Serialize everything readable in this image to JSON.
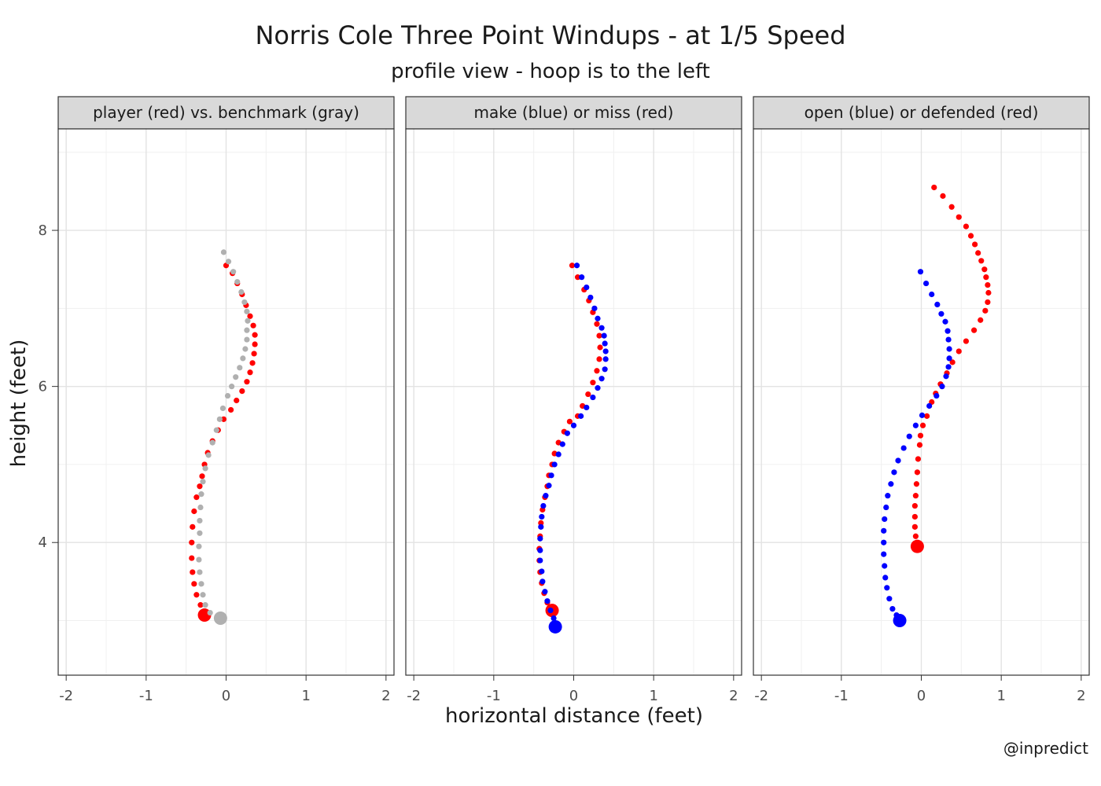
{
  "chart_data": {
    "type": "scatter",
    "title": "Norris Cole Three Point Windups - at 1/5 Speed",
    "subtitle": "profile view - hoop is to the left",
    "xlabel": "horizontal distance (feet)",
    "ylabel": "height (feet)",
    "xlim": [
      -2.1,
      2.1
    ],
    "ylim": [
      2.3,
      9.3
    ],
    "xticks": [
      -2,
      -1,
      0,
      1,
      2
    ],
    "xtick_labels": [
      "-2",
      "-1",
      "0",
      "1",
      "2"
    ],
    "yticks": [
      4,
      6,
      8
    ],
    "ytick_labels": [
      "4",
      "6",
      "8"
    ],
    "grid": true,
    "panels": [
      {
        "strip": "player (red) vs. benchmark (gray)",
        "series": [
          {
            "color": "#ff0000",
            "start": [
              -0.27,
              3.07
            ],
            "points": [
              [
                0.0,
                7.55
              ],
              [
                0.08,
                7.45
              ],
              [
                0.14,
                7.32
              ],
              [
                0.2,
                7.18
              ],
              [
                0.25,
                7.04
              ],
              [
                0.3,
                6.9
              ],
              [
                0.34,
                6.78
              ],
              [
                0.36,
                6.66
              ],
              [
                0.36,
                6.54
              ],
              [
                0.35,
                6.42
              ],
              [
                0.33,
                6.3
              ],
              [
                0.3,
                6.18
              ],
              [
                0.26,
                6.06
              ],
              [
                0.2,
                5.94
              ],
              [
                0.13,
                5.82
              ],
              [
                0.06,
                5.7
              ],
              [
                -0.03,
                5.58
              ],
              [
                -0.1,
                5.44
              ],
              [
                -0.17,
                5.3
              ],
              [
                -0.23,
                5.15
              ],
              [
                -0.27,
                5.0
              ],
              [
                -0.3,
                4.85
              ],
              [
                -0.33,
                4.72
              ],
              [
                -0.37,
                4.58
              ],
              [
                -0.4,
                4.4
              ],
              [
                -0.42,
                4.2
              ],
              [
                -0.43,
                4.0
              ],
              [
                -0.43,
                3.8
              ],
              [
                -0.42,
                3.62
              ],
              [
                -0.4,
                3.47
              ],
              [
                -0.37,
                3.33
              ],
              [
                -0.32,
                3.2
              ]
            ]
          },
          {
            "color": "#b0b0b0",
            "start": [
              -0.07,
              3.03
            ],
            "points": [
              [
                -0.03,
                7.72
              ],
              [
                0.03,
                7.6
              ],
              [
                0.09,
                7.47
              ],
              [
                0.14,
                7.34
              ],
              [
                0.19,
                7.21
              ],
              [
                0.23,
                7.08
              ],
              [
                0.26,
                6.96
              ],
              [
                0.27,
                6.84
              ],
              [
                0.26,
                6.72
              ],
              [
                0.26,
                6.6
              ],
              [
                0.24,
                6.48
              ],
              [
                0.21,
                6.36
              ],
              [
                0.17,
                6.24
              ],
              [
                0.12,
                6.12
              ],
              [
                0.07,
                6.0
              ],
              [
                0.02,
                5.88
              ],
              [
                -0.04,
                5.72
              ],
              [
                -0.08,
                5.58
              ],
              [
                -0.12,
                5.44
              ],
              [
                -0.17,
                5.28
              ],
              [
                -0.22,
                5.12
              ],
              [
                -0.26,
                4.95
              ],
              [
                -0.29,
                4.78
              ],
              [
                -0.31,
                4.62
              ],
              [
                -0.32,
                4.45
              ],
              [
                -0.33,
                4.28
              ],
              [
                -0.33,
                4.12
              ],
              [
                -0.34,
                3.95
              ],
              [
                -0.34,
                3.78
              ],
              [
                -0.33,
                3.62
              ],
              [
                -0.31,
                3.47
              ],
              [
                -0.29,
                3.33
              ],
              [
                -0.26,
                3.2
              ],
              [
                -0.2,
                3.1
              ]
            ]
          }
        ]
      },
      {
        "strip": "make (blue) or miss (red)",
        "series": [
          {
            "color": "#ff0000",
            "start": [
              -0.27,
              3.13
            ],
            "points": [
              [
                -0.02,
                7.55
              ],
              [
                0.05,
                7.4
              ],
              [
                0.13,
                7.24
              ],
              [
                0.19,
                7.1
              ],
              [
                0.24,
                6.95
              ],
              [
                0.29,
                6.8
              ],
              [
                0.32,
                6.65
              ],
              [
                0.33,
                6.5
              ],
              [
                0.32,
                6.35
              ],
              [
                0.29,
                6.2
              ],
              [
                0.24,
                6.05
              ],
              [
                0.18,
                5.9
              ],
              [
                0.11,
                5.75
              ],
              [
                0.05,
                5.62
              ],
              [
                -0.05,
                5.55
              ],
              [
                -0.12,
                5.42
              ],
              [
                -0.19,
                5.28
              ],
              [
                -0.24,
                5.14
              ],
              [
                -0.27,
                5.0
              ],
              [
                -0.31,
                4.86
              ],
              [
                -0.33,
                4.72
              ],
              [
                -0.36,
                4.58
              ],
              [
                -0.39,
                4.42
              ],
              [
                -0.41,
                4.25
              ],
              [
                -0.42,
                4.08
              ],
              [
                -0.43,
                3.92
              ],
              [
                -0.43,
                3.77
              ],
              [
                -0.42,
                3.62
              ],
              [
                -0.4,
                3.48
              ],
              [
                -0.37,
                3.35
              ],
              [
                -0.33,
                3.23
              ]
            ]
          },
          {
            "color": "#0000ff",
            "start": [
              -0.23,
              2.92
            ],
            "points": [
              [
                0.04,
                7.55
              ],
              [
                0.1,
                7.4
              ],
              [
                0.16,
                7.27
              ],
              [
                0.21,
                7.14
              ],
              [
                0.26,
                7.0
              ],
              [
                0.3,
                6.87
              ],
              [
                0.35,
                6.75
              ],
              [
                0.38,
                6.65
              ],
              [
                0.39,
                6.55
              ],
              [
                0.4,
                6.45
              ],
              [
                0.4,
                6.35
              ],
              [
                0.39,
                6.22
              ],
              [
                0.35,
                6.1
              ],
              [
                0.3,
                5.98
              ],
              [
                0.24,
                5.86
              ],
              [
                0.16,
                5.73
              ],
              [
                0.09,
                5.62
              ],
              [
                0.0,
                5.5
              ],
              [
                -0.08,
                5.4
              ],
              [
                -0.14,
                5.26
              ],
              [
                -0.19,
                5.13
              ],
              [
                -0.24,
                5.0
              ],
              [
                -0.28,
                4.86
              ],
              [
                -0.31,
                4.73
              ],
              [
                -0.35,
                4.6
              ],
              [
                -0.38,
                4.47
              ],
              [
                -0.4,
                4.33
              ],
              [
                -0.41,
                4.2
              ],
              [
                -0.42,
                4.05
              ],
              [
                -0.42,
                3.9
              ],
              [
                -0.42,
                3.77
              ],
              [
                -0.4,
                3.63
              ],
              [
                -0.39,
                3.5
              ],
              [
                -0.36,
                3.37
              ],
              [
                -0.33,
                3.25
              ],
              [
                -0.29,
                3.13
              ],
              [
                -0.25,
                3.03
              ]
            ]
          }
        ]
      },
      {
        "strip": "open (blue) or defended (red)",
        "series": [
          {
            "color": "#ff0000",
            "start": [
              -0.05,
              3.95
            ],
            "points": [
              [
                0.16,
                8.55
              ],
              [
                0.27,
                8.44
              ],
              [
                0.38,
                8.3
              ],
              [
                0.47,
                8.17
              ],
              [
                0.56,
                8.05
              ],
              [
                0.62,
                7.93
              ],
              [
                0.67,
                7.82
              ],
              [
                0.71,
                7.71
              ],
              [
                0.75,
                7.61
              ],
              [
                0.79,
                7.5
              ],
              [
                0.81,
                7.4
              ],
              [
                0.83,
                7.3
              ],
              [
                0.84,
                7.2
              ],
              [
                0.83,
                7.08
              ],
              [
                0.8,
                6.97
              ],
              [
                0.74,
                6.85
              ],
              [
                0.66,
                6.72
              ],
              [
                0.56,
                6.58
              ],
              [
                0.47,
                6.45
              ],
              [
                0.39,
                6.31
              ],
              [
                0.32,
                6.17
              ],
              [
                0.24,
                6.03
              ],
              [
                0.18,
                5.91
              ],
              [
                0.13,
                5.8
              ],
              [
                0.07,
                5.62
              ],
              [
                0.02,
                5.5
              ],
              [
                -0.01,
                5.37
              ],
              [
                -0.02,
                5.25
              ],
              [
                -0.04,
                5.07
              ],
              [
                -0.05,
                4.9
              ],
              [
                -0.06,
                4.75
              ],
              [
                -0.07,
                4.6
              ],
              [
                -0.08,
                4.47
              ],
              [
                -0.08,
                4.33
              ],
              [
                -0.08,
                4.2
              ],
              [
                -0.07,
                4.08
              ]
            ]
          },
          {
            "color": "#0000ff",
            "start": [
              -0.27,
              3.0
            ],
            "points": [
              [
                -0.01,
                7.47
              ],
              [
                0.06,
                7.32
              ],
              [
                0.13,
                7.18
              ],
              [
                0.2,
                7.05
              ],
              [
                0.25,
                6.93
              ],
              [
                0.3,
                6.83
              ],
              [
                0.33,
                6.71
              ],
              [
                0.34,
                6.6
              ],
              [
                0.35,
                6.48
              ],
              [
                0.35,
                6.36
              ],
              [
                0.34,
                6.25
              ],
              [
                0.31,
                6.13
              ],
              [
                0.26,
                6.0
              ],
              [
                0.19,
                5.88
              ],
              [
                0.1,
                5.75
              ],
              [
                0.01,
                5.63
              ],
              [
                -0.07,
                5.5
              ],
              [
                -0.15,
                5.36
              ],
              [
                -0.22,
                5.21
              ],
              [
                -0.29,
                5.05
              ],
              [
                -0.34,
                4.9
              ],
              [
                -0.38,
                4.75
              ],
              [
                -0.42,
                4.6
              ],
              [
                -0.44,
                4.45
              ],
              [
                -0.46,
                4.3
              ],
              [
                -0.47,
                4.15
              ],
              [
                -0.47,
                4.0
              ],
              [
                -0.47,
                3.85
              ],
              [
                -0.46,
                3.7
              ],
              [
                -0.45,
                3.55
              ],
              [
                -0.43,
                3.42
              ],
              [
                -0.4,
                3.28
              ],
              [
                -0.36,
                3.15
              ],
              [
                -0.31,
                3.07
              ]
            ]
          }
        ]
      }
    ]
  },
  "credit": "@inpredict"
}
